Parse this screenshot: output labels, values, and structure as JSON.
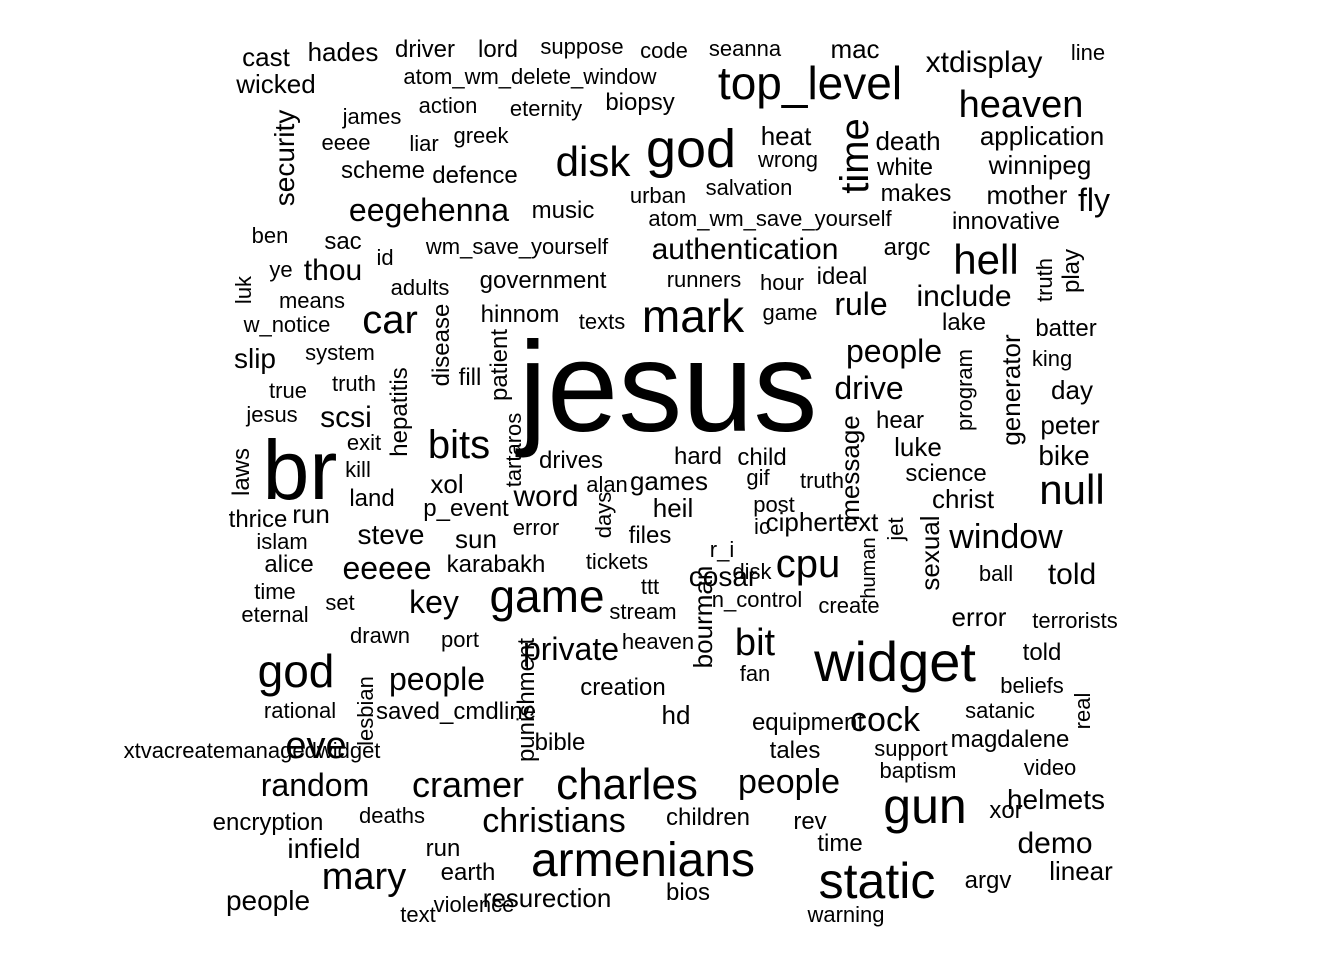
{
  "colors": {
    "background": "#ffffff",
    "text": "#000000"
  },
  "words": [
    "jesus",
    "br",
    "god",
    "top_level",
    "widget",
    "game",
    "armenians",
    "static",
    "gun",
    "mark",
    "disk",
    "time",
    "god",
    "charles",
    "car",
    "hell",
    "bits",
    "null",
    "heaven",
    "cpu",
    "mary",
    "eve",
    "cramer",
    "window",
    "christians",
    "people",
    "bit",
    "private",
    "people",
    "people",
    "include",
    "rule",
    "authentication",
    "drive",
    "random",
    "cock",
    "scsi",
    "word",
    "eeeee",
    "key",
    "security",
    "eegehenna",
    "thou",
    "slip",
    "xtdisplay",
    "demo",
    "fly",
    "mother",
    "winnipeg",
    "application",
    "infield",
    "run",
    "laws",
    "message",
    "sexual",
    "hades",
    "cast",
    "wicked",
    "driver",
    "lord",
    "suppose",
    "code",
    "seanna",
    "mac",
    "line",
    "atom_wm_delete_window",
    "action",
    "eternity",
    "biopsy",
    "heat",
    "wrong",
    "death",
    "white",
    "makes",
    "urban",
    "salvation",
    "greek",
    "liar",
    "eeee",
    "james",
    "scheme",
    "defence",
    "music",
    "atom_wm_save_yourself",
    "innovative",
    "ben",
    "sac",
    "id",
    "wm_save_yourself",
    "argc",
    "ye",
    "luk",
    "adults",
    "government",
    "runners",
    "hour",
    "ideal",
    "means",
    "w_notice",
    "hinnom",
    "texts",
    "game",
    "disease",
    "patient",
    "fill",
    "lake",
    "truth",
    "play",
    "batter",
    "system",
    "true",
    "truth",
    "hepatitis",
    "program",
    "generator",
    "king",
    "day",
    "peter",
    "bike",
    "hear",
    "luke",
    "jesus",
    "exit",
    "kill",
    "tartaros",
    "drives",
    "hard",
    "child",
    "games",
    "gif",
    "truth",
    "science",
    "christ",
    "xol",
    "alan",
    "post",
    "land",
    "p_event",
    "heil",
    "thrice",
    "islam",
    "steve",
    "sun",
    "error",
    "files",
    "ic",
    "ciphertext",
    "jet",
    "days",
    "alice",
    "time",
    "eternal",
    "karabakh",
    "tickets",
    "r_i",
    "disk",
    "human",
    "ball",
    "told",
    "ttt",
    "cosar",
    "n_control",
    "create",
    "set",
    "stream",
    "bourman",
    "error",
    "terrorists",
    "drawn",
    "port",
    "heaven",
    "told",
    "beliefs",
    "fan",
    "punishment",
    "creation",
    "rational",
    "lesbian",
    "saved_cmdline",
    "hd",
    "equipment",
    "satanic",
    "real",
    "xtvacreatemanagedwidget",
    "bible",
    "tales",
    "support",
    "magdalene",
    "baptism",
    "video",
    "encryption",
    "deaths",
    "children",
    "rev",
    "xor",
    "helmets",
    "run",
    "time",
    "earth",
    "people",
    "resurection",
    "bios",
    "argv",
    "linear",
    "text",
    "violence",
    "warning"
  ]
}
